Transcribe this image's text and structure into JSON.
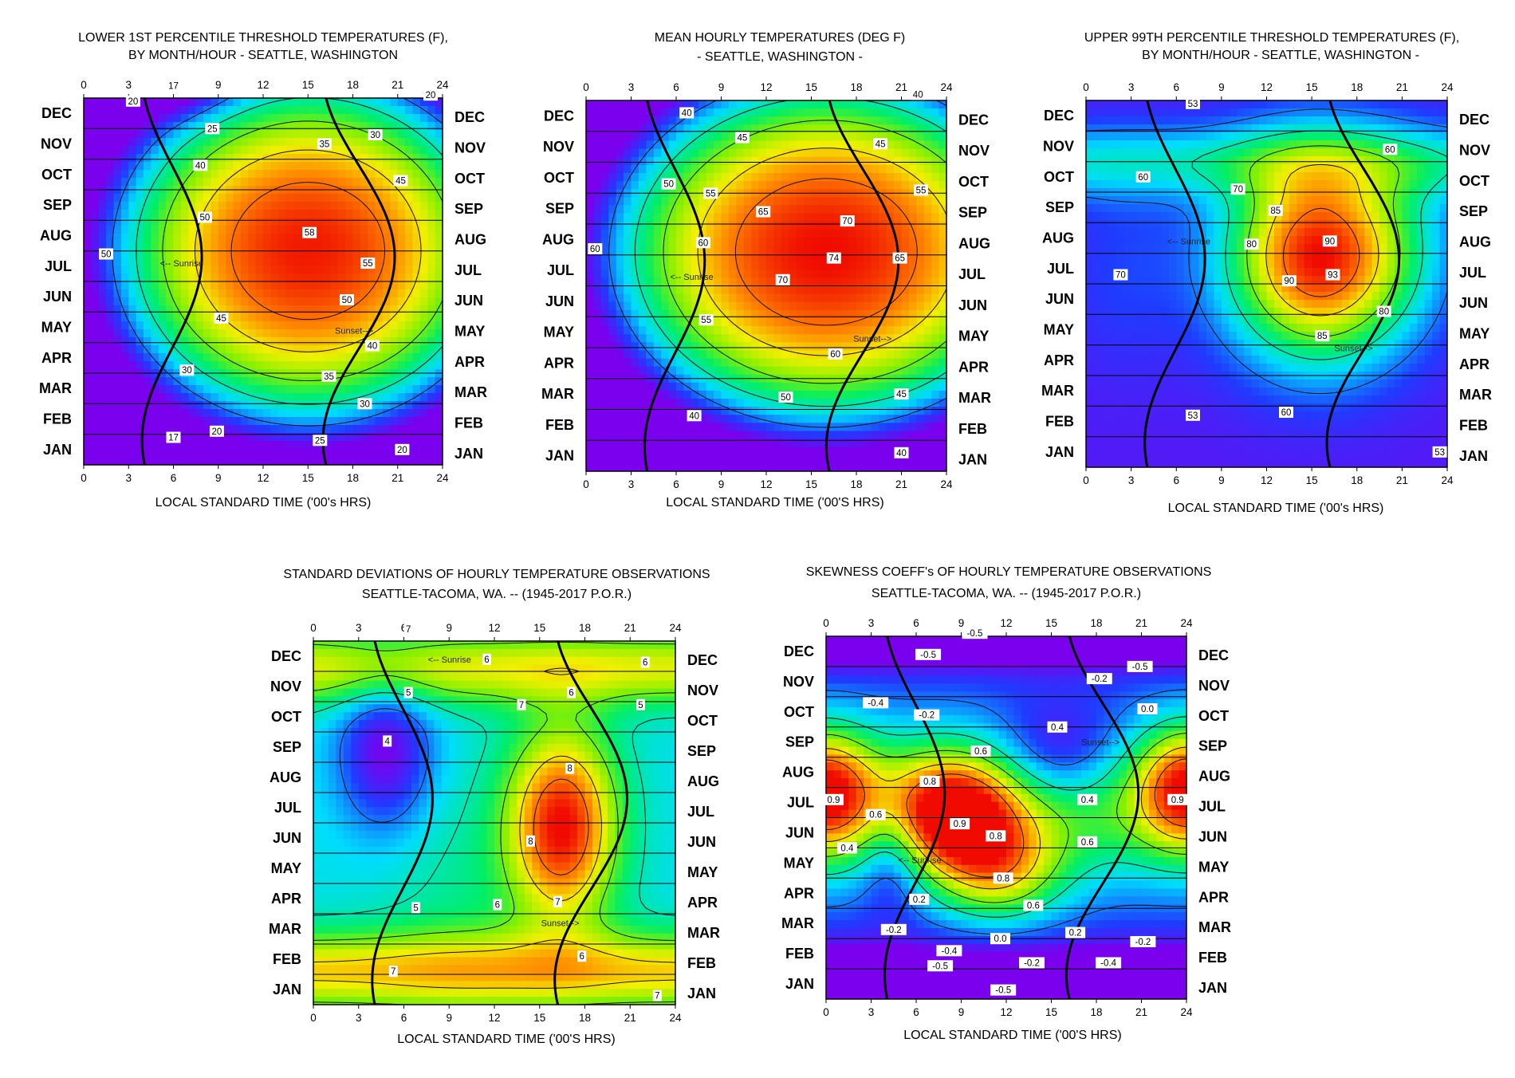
{
  "chart_data": [
    {
      "type": "heatmap",
      "title": [
        "LOWER 1ST PERCENTILE THRESHOLD TEMPERATURES (F),",
        "BY MONTH/HOUR -  SEATTLE, WASHINGTON"
      ],
      "xlabel": "LOCAL STANDARD TIME ('00's HRS)",
      "xlim": [
        0,
        24
      ],
      "xticks": [
        "0",
        "3",
        "6",
        "9",
        "12",
        "15",
        "18",
        "21",
        "24"
      ],
      "months": [
        "DEC",
        "NOV",
        "OCT",
        "SEP",
        "AUG",
        "JUL",
        "JUN",
        "MAY",
        "APR",
        "MAR",
        "FEB",
        "JAN"
      ],
      "vmin": 15,
      "vmax": 60,
      "contour_labels": [
        {
          "x": 6,
          "month": 11.9,
          "text": "17"
        },
        {
          "x": 3.3,
          "month": 11.4,
          "text": "20"
        },
        {
          "x": 23.2,
          "month": 11.6,
          "text": "20"
        },
        {
          "x": 8.6,
          "month": 10.5,
          "text": "25"
        },
        {
          "x": 16.1,
          "month": 10.0,
          "text": "35"
        },
        {
          "x": 19.5,
          "month": 10.3,
          "text": "30"
        },
        {
          "x": 7.8,
          "month": 9.3,
          "text": "40"
        },
        {
          "x": 21.2,
          "month": 8.8,
          "text": "45"
        },
        {
          "x": 8.1,
          "month": 7.6,
          "text": "50"
        },
        {
          "x": 15.1,
          "month": 7.1,
          "text": "58"
        },
        {
          "x": 1.5,
          "month": 6.4,
          "text": "50"
        },
        {
          "x": 19.0,
          "month": 6.1,
          "text": "55"
        },
        {
          "x": 17.6,
          "month": 4.9,
          "text": "50"
        },
        {
          "x": 9.2,
          "month": 4.3,
          "text": "45"
        },
        {
          "x": 19.3,
          "month": 3.4,
          "text": "40"
        },
        {
          "x": 6.9,
          "month": 2.6,
          "text": "30"
        },
        {
          "x": 16.4,
          "month": 2.4,
          "text": "35"
        },
        {
          "x": 18.8,
          "month": 1.5,
          "text": "30"
        },
        {
          "x": 8.9,
          "month": 0.6,
          "text": "20"
        },
        {
          "x": 6.0,
          "month": 0.4,
          "text": "17"
        },
        {
          "x": 15.8,
          "month": 0.3,
          "text": "25"
        },
        {
          "x": 21.3,
          "month": 0.0,
          "text": "20"
        }
      ],
      "annotations": [
        {
          "text": "<-- Sunrise",
          "x": 5.1,
          "month": 6.1
        },
        {
          "text": "Sunset-->",
          "x": 16.8,
          "month": 3.9
        }
      ],
      "sunrise_label": "<-- Sunrise",
      "sunset_label": "Sunset-->"
    },
    {
      "type": "heatmap",
      "title": [
        "MEAN HOURLY TEMPERATURES (DEG F)",
        "- SEATTLE, WASHINGTON -"
      ],
      "xlabel": "LOCAL STANDARD TIME ('00'S HRS)",
      "xlim": [
        0,
        24
      ],
      "xticks": [
        "0",
        "3",
        "6",
        "9",
        "12",
        "15",
        "18",
        "21",
        "24"
      ],
      "months": [
        "DEC",
        "NOV",
        "OCT",
        "SEP",
        "AUG",
        "JUL",
        "JUN",
        "MAY",
        "APR",
        "MAR",
        "FEB",
        "JAN"
      ],
      "vmin": 36,
      "vmax": 76,
      "contour_labels": [
        {
          "x": 22.1,
          "month": 11.7,
          "text": "40"
        },
        {
          "x": 6.7,
          "month": 11.1,
          "text": "40"
        },
        {
          "x": 10.4,
          "month": 10.3,
          "text": "45"
        },
        {
          "x": 19.6,
          "month": 10.1,
          "text": "45"
        },
        {
          "x": 5.5,
          "month": 8.8,
          "text": "50"
        },
        {
          "x": 8.3,
          "month": 8.5,
          "text": "55"
        },
        {
          "x": 22.3,
          "month": 8.6,
          "text": "55"
        },
        {
          "x": 11.8,
          "month": 7.9,
          "text": "65"
        },
        {
          "x": 17.4,
          "month": 7.6,
          "text": "70"
        },
        {
          "x": 7.8,
          "month": 6.9,
          "text": "60"
        },
        {
          "x": 0.6,
          "month": 6.7,
          "text": "60"
        },
        {
          "x": 16.5,
          "month": 6.4,
          "text": "74"
        },
        {
          "x": 20.9,
          "month": 6.4,
          "text": "65"
        },
        {
          "x": 13.1,
          "month": 5.7,
          "text": "70"
        },
        {
          "x": 8.0,
          "month": 4.4,
          "text": "55"
        },
        {
          "x": 16.6,
          "month": 3.3,
          "text": "60"
        },
        {
          "x": 13.3,
          "month": 1.9,
          "text": "50"
        },
        {
          "x": 21.0,
          "month": 2.0,
          "text": "45"
        },
        {
          "x": 7.2,
          "month": 1.3,
          "text": "40"
        },
        {
          "x": 21.0,
          "month": 0.1,
          "text": "40"
        }
      ],
      "annotations": [
        {
          "text": "<-- Sunrise",
          "x": 5.6,
          "month": 5.8
        },
        {
          "text": "Sunset-->",
          "x": 17.8,
          "month": 3.8
        }
      ],
      "sunrise_label": "<-- Sunrise",
      "sunset_label": "Sunset-->"
    },
    {
      "type": "heatmap",
      "title": [
        "UPPER 99TH PERCENTILE THRESHOLD TEMPERATURES (F),",
        "BY MONTH/HOUR - SEATTLE, WASHINGTON -"
      ],
      "xlabel": "LOCAL STANDARD TIME ('00's HRS)",
      "xlim": [
        0,
        24
      ],
      "xticks": [
        "0",
        "3",
        "6",
        "9",
        "12",
        "15",
        "18",
        "21",
        "24"
      ],
      "months": [
        "DEC",
        "NOV",
        "OCT",
        "SEP",
        "AUG",
        "JUL",
        "JUN",
        "MAY",
        "APR",
        "MAR",
        "FEB",
        "JAN"
      ],
      "vmin": 48,
      "vmax": 95,
      "contour_labels": [
        {
          "x": 7.1,
          "month": 11.4,
          "text": "53"
        },
        {
          "x": 20.2,
          "month": 9.9,
          "text": "60"
        },
        {
          "x": 3.8,
          "month": 9.0,
          "text": "60"
        },
        {
          "x": 10.1,
          "month": 8.6,
          "text": "70"
        },
        {
          "x": 12.6,
          "month": 7.9,
          "text": "85"
        },
        {
          "x": 16.2,
          "month": 6.9,
          "text": "90"
        },
        {
          "x": 11.0,
          "month": 6.8,
          "text": "80"
        },
        {
          "x": 16.4,
          "month": 5.8,
          "text": "93"
        },
        {
          "x": 13.5,
          "month": 5.6,
          "text": "90"
        },
        {
          "x": 2.3,
          "month": 5.8,
          "text": "70"
        },
        {
          "x": 19.8,
          "month": 4.6,
          "text": "80"
        },
        {
          "x": 15.7,
          "month": 3.8,
          "text": "85"
        },
        {
          "x": 13.3,
          "month": 1.3,
          "text": "60"
        },
        {
          "x": 7.1,
          "month": 1.2,
          "text": "53"
        },
        {
          "x": 23.5,
          "month": 0.0,
          "text": "53"
        }
      ],
      "annotations": [
        {
          "text": "<-- Sunrise",
          "x": 5.4,
          "month": 6.9
        },
        {
          "text": "Sunset-->",
          "x": 16.5,
          "month": 3.4
        }
      ],
      "sunrise_label": "<-- Sunrise",
      "sunset_label": "Sunset-->"
    },
    {
      "type": "heatmap",
      "title": [
        "STANDARD DEVIATIONS OF HOURLY TEMPERATURE OBSERVATIONS",
        "SEATTLE-TACOMA, WA.  -- (1945-2017 P.O.R.)"
      ],
      "xlabel": "LOCAL STANDARD TIME ('00'S HRS)",
      "xlim": [
        0,
        24
      ],
      "xticks": [
        "0",
        "3",
        "6",
        "9",
        "12",
        "15",
        "18",
        "21",
        "24"
      ],
      "months": [
        "DEC",
        "NOV",
        "OCT",
        "SEP",
        "AUG",
        "JUL",
        "JUN",
        "MAY",
        "APR",
        "MAR",
        "FEB",
        "JAN"
      ],
      "vmin": 3.6,
      "vmax": 8.8,
      "contour_labels": [
        {
          "x": 6.3,
          "month": 11.9,
          "text": "7"
        },
        {
          "x": 11.5,
          "month": 10.9,
          "text": "6"
        },
        {
          "x": 22.0,
          "month": 10.8,
          "text": "6"
        },
        {
          "x": 6.3,
          "month": 9.8,
          "text": "5"
        },
        {
          "x": 17.1,
          "month": 9.8,
          "text": "6"
        },
        {
          "x": 21.7,
          "month": 9.4,
          "text": "5"
        },
        {
          "x": 4.9,
          "month": 8.2,
          "text": "4"
        },
        {
          "x": 13.8,
          "month": 9.4,
          "text": "7"
        },
        {
          "x": 17.0,
          "month": 7.3,
          "text": "8"
        },
        {
          "x": 14.4,
          "month": 4.9,
          "text": "8"
        },
        {
          "x": 6.8,
          "month": 2.7,
          "text": "5"
        },
        {
          "x": 12.2,
          "month": 2.8,
          "text": "6"
        },
        {
          "x": 16.2,
          "month": 2.9,
          "text": "7"
        },
        {
          "x": 17.8,
          "month": 1.1,
          "text": "6"
        },
        {
          "x": 5.3,
          "month": 0.6,
          "text": "7"
        },
        {
          "x": 22.8,
          "month": -0.2,
          "text": "7"
        }
      ],
      "annotations": [
        {
          "text": "<-- Sunrise",
          "x": 7.6,
          "month": 10.9
        },
        {
          "text": "Sunset-->",
          "x": 15.1,
          "month": 2.2
        }
      ],
      "sunrise_label": "<-- Sunrise",
      "sunset_label": "Sunset-->"
    },
    {
      "type": "heatmap",
      "title": [
        "SKEWNESS COEFF's OF HOURLY TEMPERATURE OBSERVATIONS",
        "SEATTLE-TACOMA, WA.  -- (1945-2017 P.O.R.)"
      ],
      "xlabel": "LOCAL STANDARD TIME ('00'S HRS)",
      "xlim": [
        0,
        24
      ],
      "xticks": [
        "0",
        "3",
        "6",
        "9",
        "12",
        "15",
        "18",
        "21",
        "24"
      ],
      "months": [
        "DEC",
        "NOV",
        "OCT",
        "SEP",
        "AUG",
        "JUL",
        "JUN",
        "MAY",
        "APR",
        "MAR",
        "FEB",
        "JAN"
      ],
      "vmin": -0.6,
      "vmax": 1.0,
      "contour_labels": [
        {
          "x": 9.9,
          "month": 11.6,
          "text": "-0.5"
        },
        {
          "x": 6.8,
          "month": 10.9,
          "text": "-0.5"
        },
        {
          "x": 20.9,
          "month": 10.5,
          "text": "-0.5"
        },
        {
          "x": 18.2,
          "month": 10.1,
          "text": "-0.2"
        },
        {
          "x": 3.3,
          "month": 9.3,
          "text": "-0.4"
        },
        {
          "x": 6.7,
          "month": 8.9,
          "text": "-0.2"
        },
        {
          "x": 21.4,
          "month": 9.1,
          "text": "0.0"
        },
        {
          "x": 15.4,
          "month": 8.5,
          "text": "0.4"
        },
        {
          "x": 10.3,
          "month": 7.7,
          "text": "0.6"
        },
        {
          "x": 6.9,
          "month": 6.7,
          "text": "0.8"
        },
        {
          "x": 0.5,
          "month": 6.1,
          "text": "0.9"
        },
        {
          "x": 23.4,
          "month": 6.1,
          "text": "0.9"
        },
        {
          "x": 17.4,
          "month": 6.1,
          "text": "0.4"
        },
        {
          "x": 3.3,
          "month": 5.6,
          "text": "0.6"
        },
        {
          "x": 8.9,
          "month": 5.3,
          "text": "0.9"
        },
        {
          "x": 11.3,
          "month": 4.9,
          "text": "0.8"
        },
        {
          "x": 17.4,
          "month": 4.7,
          "text": "0.6"
        },
        {
          "x": 1.4,
          "month": 4.5,
          "text": "0.4"
        },
        {
          "x": 11.8,
          "month": 3.5,
          "text": "0.8"
        },
        {
          "x": 6.2,
          "month": 2.8,
          "text": "0.2"
        },
        {
          "x": 13.8,
          "month": 2.6,
          "text": "0.6"
        },
        {
          "x": 4.5,
          "month": 1.8,
          "text": "-0.2"
        },
        {
          "x": 11.6,
          "month": 1.5,
          "text": "0.0"
        },
        {
          "x": 16.6,
          "month": 1.7,
          "text": "0.2"
        },
        {
          "x": 21.1,
          "month": 1.4,
          "text": "-0.2"
        },
        {
          "x": 8.2,
          "month": 1.1,
          "text": "-0.4"
        },
        {
          "x": 13.7,
          "month": 0.7,
          "text": "-0.2"
        },
        {
          "x": 18.8,
          "month": 0.7,
          "text": "-0.4"
        },
        {
          "x": 7.6,
          "month": 0.6,
          "text": "-0.5"
        },
        {
          "x": 11.8,
          "month": -0.2,
          "text": "-0.5"
        }
      ],
      "annotations": [
        {
          "text": "<-- Sunrise",
          "x": 4.8,
          "month": 4.1
        },
        {
          "text": "Sunset-->",
          "x": 17.0,
          "month": 8.0
        }
      ],
      "sunrise_label": "<-- Sunrise",
      "sunset_label": "Sunset-->"
    }
  ]
}
